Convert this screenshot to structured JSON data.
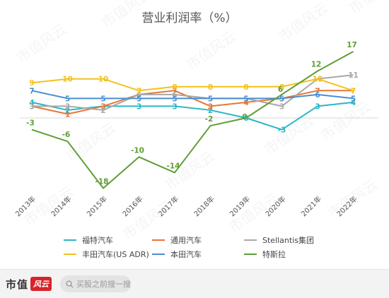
{
  "chart_data": {
    "type": "line",
    "title": "营业利润率（%）",
    "categories": [
      "2013年",
      "2014年",
      "2015年",
      "2016年",
      "2017年",
      "2018年",
      "2019年",
      "2020年",
      "2021年",
      "2022年"
    ],
    "series": [
      {
        "name": "福特汽车",
        "color": "#2bb6c6",
        "dash": true,
        "values": [
          4,
          2,
          3,
          3,
          3,
          2,
          0,
          -3,
          3,
          4
        ]
      },
      {
        "name": "通用汽车",
        "color": "#e87636",
        "dash": false,
        "values": [
          3,
          1,
          3,
          6,
          7,
          3,
          4,
          5,
          7,
          7
        ]
      },
      {
        "name": "Stellantis集团",
        "color": "#a9a9a9",
        "dash": false,
        "values": [
          3,
          3,
          2,
          6,
          6,
          5,
          5,
          3,
          10,
          11
        ]
      },
      {
        "name": "丰田汽车(US ADR)",
        "color": "#f5c11c",
        "dash": false,
        "values": [
          9,
          10,
          10,
          7,
          8,
          8,
          8,
          8,
          10,
          7
        ]
      },
      {
        "name": "本田汽车",
        "color": "#4a8fd0",
        "dash": false,
        "values": [
          7,
          5,
          5,
          5,
          5,
          5,
          5,
          5,
          6,
          5
        ]
      },
      {
        "name": "特斯拉",
        "color": "#5e9e35",
        "dash": false,
        "values": [
          -3,
          -6,
          -18,
          -10,
          -14,
          -2,
          0,
          6,
          12,
          17
        ]
      }
    ],
    "ylim": [
      -20,
      18
    ],
    "grid": false,
    "legend": "bottom"
  },
  "footer": {
    "brand": "市值",
    "brand_stamp": "风云",
    "search_placeholder": "买股之前搜一搜"
  },
  "watermark": "市值风云"
}
